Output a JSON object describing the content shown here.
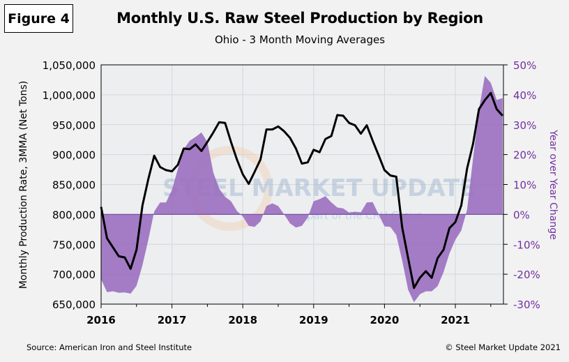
{
  "figure_label": "Figure 4",
  "footer": {
    "source": "Source: American Iron and Steel Institute",
    "copyright": "© Steel Market Update 2021"
  },
  "watermark": {
    "main": "STEEL MARKET UPDATE",
    "sub": "part of the CRU Group"
  },
  "colors": {
    "line": "#000000",
    "area": "#9b6fc0",
    "right_axis": "#7030a0",
    "plot_bg": "#eceef0"
  },
  "chart_data": {
    "type": "line+area",
    "title": "Monthly U.S. Raw Steel Production by Region",
    "subtitle": "Ohio - 3 Month Moving Averages",
    "ylabel": "Monthly Production Rate, 3MMA (Net Tons)",
    "y2label": "Year over Year Change",
    "ylim": [
      650000,
      1050000
    ],
    "y2lim": [
      -30,
      50
    ],
    "yticks": [
      "650,000",
      "700,000",
      "750,000",
      "800,000",
      "850,000",
      "900,000",
      "950,000",
      "1,000,000",
      "1,050,000"
    ],
    "y2ticks": [
      "-30%",
      "-20%",
      "-10%",
      "0%",
      "10%",
      "20%",
      "30%",
      "40%",
      "50%"
    ],
    "xticks": [
      "2016",
      "2017",
      "2018",
      "2019",
      "2020",
      "2021"
    ],
    "xlim": [
      "2016-01",
      "2021-09"
    ],
    "grid": true,
    "x": [
      "2016-01",
      "2016-02",
      "2016-03",
      "2016-04",
      "2016-05",
      "2016-06",
      "2016-07",
      "2016-08",
      "2016-09",
      "2016-10",
      "2016-11",
      "2016-12",
      "2017-01",
      "2017-02",
      "2017-03",
      "2017-04",
      "2017-05",
      "2017-06",
      "2017-07",
      "2017-08",
      "2017-09",
      "2017-10",
      "2017-11",
      "2017-12",
      "2018-01",
      "2018-02",
      "2018-03",
      "2018-04",
      "2018-05",
      "2018-06",
      "2018-07",
      "2018-08",
      "2018-09",
      "2018-10",
      "2018-11",
      "2018-12",
      "2019-01",
      "2019-02",
      "2019-03",
      "2019-04",
      "2019-05",
      "2019-06",
      "2019-07",
      "2019-08",
      "2019-09",
      "2019-10",
      "2019-11",
      "2019-12",
      "2020-01",
      "2020-02",
      "2020-03",
      "2020-04",
      "2020-05",
      "2020-06",
      "2020-07",
      "2020-08",
      "2020-09",
      "2020-10",
      "2020-11",
      "2020-12",
      "2021-01",
      "2021-02",
      "2021-03",
      "2021-04",
      "2021-05",
      "2021-06",
      "2021-07",
      "2021-08",
      "2021-09"
    ],
    "series": [
      {
        "type": "line",
        "axis": "left",
        "values": [
          812600,
          760000,
          745000,
          730000,
          728000,
          709000,
          741000,
          815000,
          859000,
          898000,
          879000,
          874000,
          872000,
          883000,
          910000,
          909000,
          917000,
          906000,
          921000,
          937000,
          954000,
          953000,
          921000,
          892000,
          867000,
          851000,
          871000,
          892000,
          942000,
          942000,
          947000,
          939000,
          928000,
          910000,
          885000,
          887000,
          908000,
          904000,
          926000,
          931000,
          966000,
          965000,
          953000,
          949000,
          935000,
          949000,
          923000,
          899000,
          874000,
          865000,
          863000,
          778000,
          727000,
          677000,
          694000,
          705000,
          694000,
          727000,
          741000,
          777000,
          787000,
          815000,
          877000,
          918000,
          976000,
          991000,
          1003000,
          976000,
          965000
        ]
      },
      {
        "type": "area",
        "axis": "right",
        "values": [
          -21.7,
          -26.0,
          -25.7,
          -26.2,
          -26.1,
          -26.5,
          -23.9,
          -17.0,
          -8.5,
          1.0,
          4.0,
          4.0,
          8.2,
          15.2,
          21.8,
          24.6,
          25.9,
          27.4,
          24.2,
          14.0,
          8.6,
          5.9,
          4.4,
          1.2,
          -0.7,
          -3.8,
          -4.2,
          -2.3,
          2.8,
          3.7,
          2.8,
          0.0,
          -3.0,
          -4.4,
          -3.8,
          -1.1,
          4.4,
          5.1,
          6.1,
          4.0,
          2.3,
          2.0,
          0.6,
          0.9,
          0.7,
          4.0,
          4.1,
          0.0,
          -4.0,
          -4.2,
          -6.9,
          -15.5,
          -25.2,
          -29.4,
          -26.7,
          -25.7,
          -25.7,
          -24.0,
          -19.3,
          -13.1,
          -8.5,
          -5.4,
          1.6,
          18.7,
          35.0,
          46.3,
          44.0,
          38.3,
          38.9
        ]
      }
    ]
  }
}
